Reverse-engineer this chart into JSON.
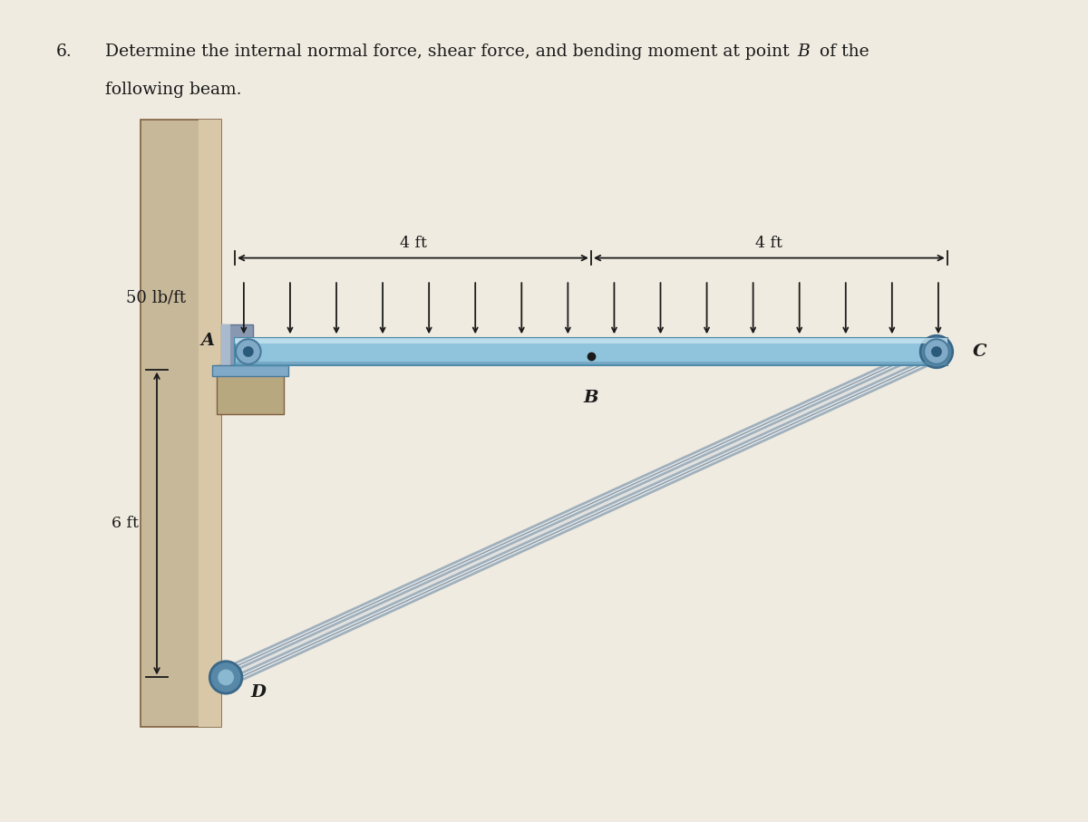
{
  "title_number": "6.",
  "title_text_1": "Determine the internal normal force, shear force, and bending moment at point ",
  "title_text_B": "B",
  "title_text_2": " of the",
  "title_text_3": "following beam.",
  "title_fontsize": 13.5,
  "bg_color": "#f0ebe0",
  "beam_color_top": "#b8d8ea",
  "beam_color_main": "#90c0d8",
  "beam_border_color": "#5a8fa8",
  "wall_outer_color": "#c8b89a",
  "wall_inner_color": "#b8a880",
  "wall_edge_color": "#806040",
  "pillar_color": "#a09070",
  "rod_color": "#c8ced4",
  "rod_highlight": "#e0e8ee",
  "rod_shadow": "#7090a8",
  "tip_color": "#5888a8",
  "tip_edge": "#3a6888",
  "pin_color": "#80aac8",
  "pin_edge": "#4a7a9a",
  "arrow_color": "#1a1a1a",
  "text_color": "#1a1a1a",
  "label_4ft_left": "4 ft",
  "label_4ft_right": "4 ft",
  "label_50lbft": "50 lb/ft",
  "label_6ft": "6 ft",
  "label_A": "A",
  "label_B": "B",
  "label_C": "C",
  "label_D": "D",
  "num_dist_arrows": 16
}
